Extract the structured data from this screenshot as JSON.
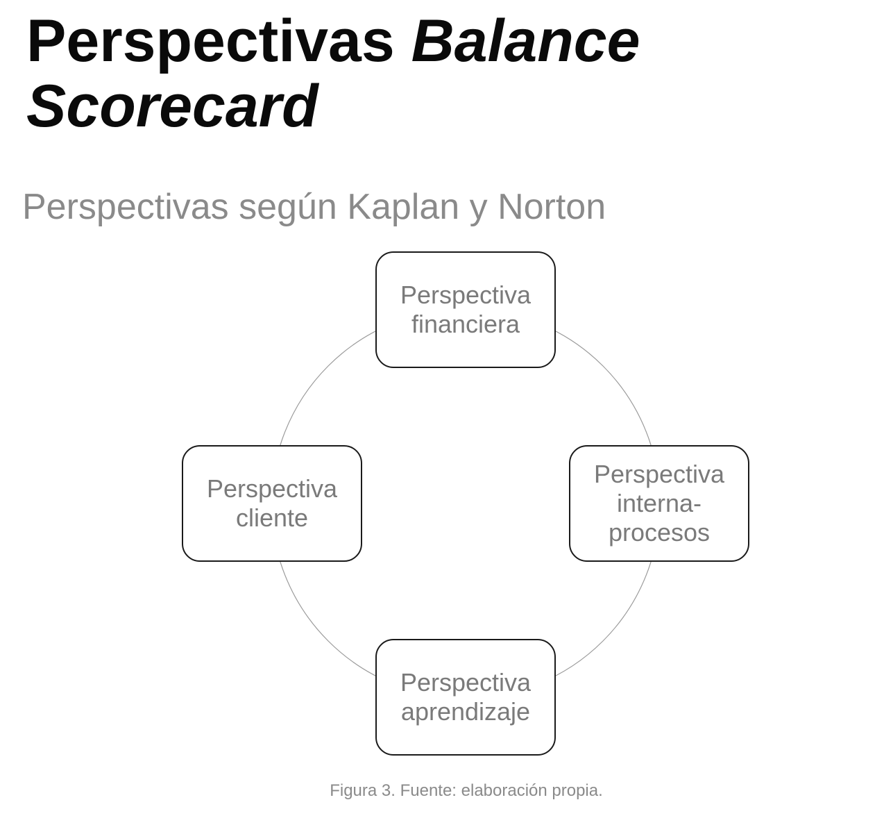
{
  "title": {
    "line1_regular": "Perspectivas ",
    "line1_italic": "Balance",
    "line2_italic": "Scorecard"
  },
  "subtitle": "Perspectivas según Kaplan y Norton",
  "diagram": {
    "nodes": [
      {
        "line1": "Perspectiva",
        "line2": "financiera"
      },
      {
        "line1": "Perspectiva",
        "line2": "interna-",
        "line3": "procesos"
      },
      {
        "line1": "Perspectiva",
        "line2": "aprendizaje"
      },
      {
        "line1": "Perspectiva",
        "line2": "cliente"
      }
    ],
    "colors": {
      "box_border": "#1a1a1a",
      "box_text": "#7a7a7a",
      "circle_line": "#9a9a9a"
    }
  },
  "caption": "Figura 3. Fuente: elaboración propia."
}
